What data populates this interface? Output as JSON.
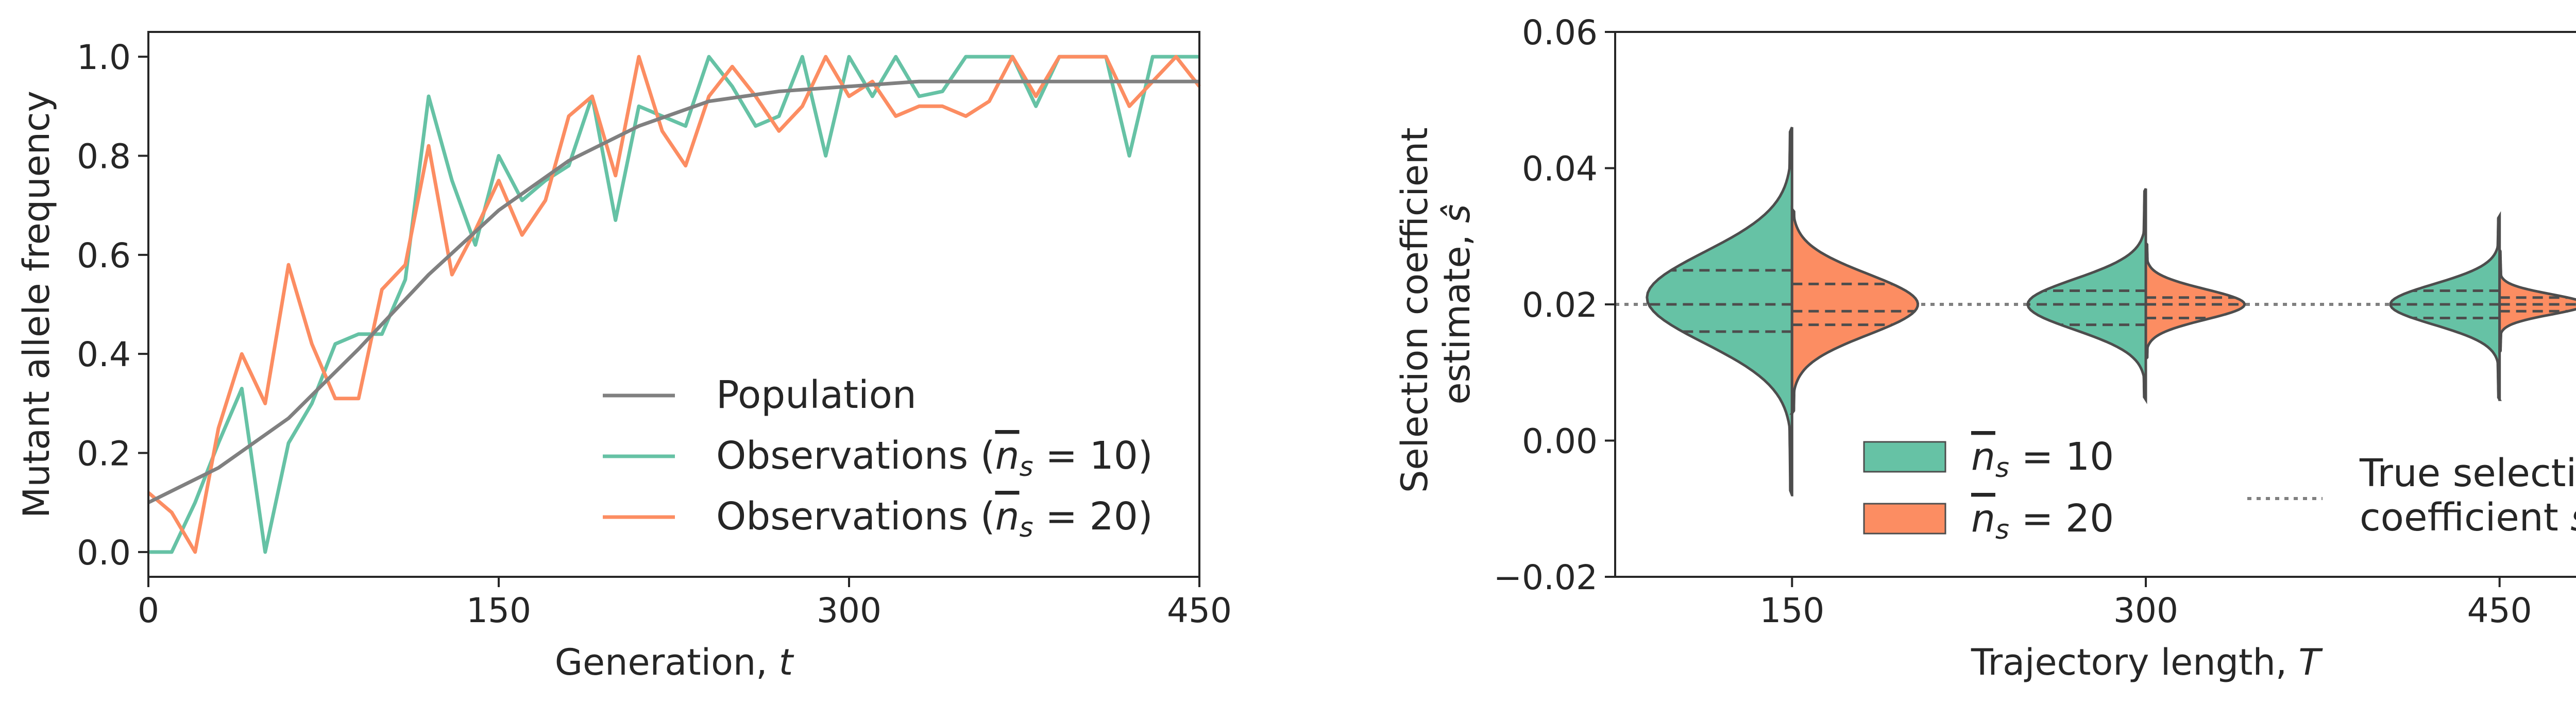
{
  "chart_data": [
    {
      "type": "line",
      "xlabel": "Generation, t",
      "ylabel": "Mutant allele frequency",
      "xlim": [
        0,
        450
      ],
      "ylim": [
        -0.05,
        1.05
      ],
      "xticks": [
        0,
        150,
        300,
        450
      ],
      "yticks": [
        0.0,
        0.2,
        0.4,
        0.6,
        0.8,
        1.0
      ],
      "xtick_labels": [
        "0",
        "150",
        "300",
        "450"
      ],
      "ytick_labels": [
        "0.0",
        "0.2",
        "0.4",
        "0.6",
        "0.8",
        "1.0"
      ],
      "legend_position": "lower-right",
      "population": {
        "name": "Population",
        "color": "#808080",
        "x": [
          0,
          30,
          60,
          90,
          120,
          150,
          180,
          210,
          240,
          270,
          300,
          330,
          360,
          390,
          420,
          450
        ],
        "y": [
          0.1,
          0.17,
          0.27,
          0.41,
          0.56,
          0.69,
          0.79,
          0.86,
          0.91,
          0.93,
          0.94,
          0.95,
          0.95,
          0.95,
          0.95,
          0.95
        ]
      },
      "series": [
        {
          "name": "Observations (n̄ₛ = 10)",
          "color": "#66c2a5",
          "x": [
            0,
            10,
            20,
            30,
            40,
            50,
            60,
            70,
            80,
            90,
            100,
            110,
            120,
            130,
            140,
            150,
            160,
            170,
            180,
            190,
            200,
            210,
            220,
            230,
            240,
            250,
            260,
            270,
            280,
            290,
            300,
            310,
            320,
            330,
            340,
            350,
            360,
            370,
            380,
            390,
            400,
            410,
            420,
            430,
            440,
            450
          ],
          "y": [
            0.0,
            0.0,
            0.1,
            0.22,
            0.33,
            0.0,
            0.22,
            0.3,
            0.42,
            0.44,
            0.44,
            0.55,
            0.92,
            0.75,
            0.62,
            0.8,
            0.71,
            0.75,
            0.78,
            0.92,
            0.67,
            0.9,
            0.88,
            0.86,
            1.0,
            0.94,
            0.86,
            0.88,
            1.0,
            0.8,
            1.0,
            0.92,
            1.0,
            0.92,
            0.93,
            1.0,
            1.0,
            1.0,
            0.9,
            1.0,
            1.0,
            1.0,
            0.8,
            1.0,
            1.0,
            1.0
          ]
        },
        {
          "name": "Observations (n̄ₛ = 20)",
          "color": "#fc8d62",
          "x": [
            0,
            10,
            20,
            30,
            40,
            50,
            60,
            70,
            80,
            90,
            100,
            110,
            120,
            130,
            140,
            150,
            160,
            170,
            180,
            190,
            200,
            210,
            220,
            230,
            240,
            250,
            260,
            270,
            280,
            290,
            300,
            310,
            320,
            330,
            340,
            350,
            360,
            370,
            380,
            390,
            400,
            410,
            420,
            430,
            440,
            450
          ],
          "y": [
            0.12,
            0.08,
            0.0,
            0.25,
            0.4,
            0.3,
            0.58,
            0.42,
            0.31,
            0.31,
            0.53,
            0.58,
            0.82,
            0.56,
            0.65,
            0.75,
            0.64,
            0.71,
            0.88,
            0.92,
            0.76,
            1.0,
            0.85,
            0.78,
            0.92,
            0.98,
            0.92,
            0.85,
            0.9,
            1.0,
            0.92,
            0.95,
            0.88,
            0.9,
            0.9,
            0.88,
            0.91,
            1.0,
            0.92,
            1.0,
            1.0,
            1.0,
            0.9,
            0.95,
            1.0,
            0.94
          ]
        }
      ]
    },
    {
      "type": "violin",
      "split": true,
      "xlabel": "Trajectory length, T",
      "ylabel_lines": [
        "Selection coefficient",
        "estimate, ŝ"
      ],
      "categories": [
        "150",
        "300",
        "450"
      ],
      "ylim": [
        -0.02,
        0.06
      ],
      "yticks": [
        -0.02,
        0.0,
        0.02,
        0.04,
        0.06
      ],
      "ytick_labels": [
        "−0.02",
        "0.00",
        "0.02",
        "0.04",
        "0.06"
      ],
      "true_selection": {
        "value": 0.02,
        "label_lines": [
          "True selection",
          "coefficient s"
        ],
        "color": "#808080"
      },
      "legend_position": "lower-center",
      "series": [
        {
          "name": "n̄ₛ = 10",
          "color": "#66c2a5",
          "groups": [
            {
              "min": -0.008,
              "max": 0.046,
              "q1": 0.016,
              "median": 0.02,
              "q3": 0.025,
              "peak": 0.021
            },
            {
              "min": 0.006,
              "max": 0.037,
              "q1": 0.017,
              "median": 0.02,
              "q3": 0.022,
              "peak": 0.02
            },
            {
              "min": 0.006,
              "max": 0.033,
              "q1": 0.018,
              "median": 0.02,
              "q3": 0.022,
              "peak": 0.02
            }
          ]
        },
        {
          "name": "n̄ₛ = 20",
          "color": "#fc8d62",
          "groups": [
            {
              "min": 0.004,
              "max": 0.034,
              "q1": 0.017,
              "median": 0.019,
              "q3": 0.023,
              "peak": 0.02
            },
            {
              "min": 0.012,
              "max": 0.029,
              "q1": 0.018,
              "median": 0.02,
              "q3": 0.021,
              "peak": 0.02
            },
            {
              "min": 0.013,
              "max": 0.028,
              "q1": 0.019,
              "median": 0.02,
              "q3": 0.021,
              "peak": 0.02
            }
          ]
        }
      ]
    }
  ]
}
